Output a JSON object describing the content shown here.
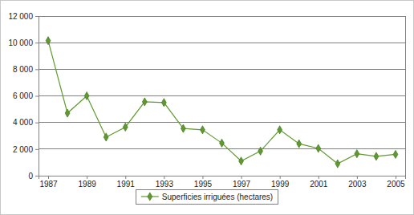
{
  "chart_data": {
    "type": "line",
    "x": [
      1987,
      1988,
      1989,
      1990,
      1991,
      1992,
      1993,
      1994,
      1995,
      1996,
      1997,
      1998,
      1999,
      2000,
      2001,
      2002,
      2003,
      2004,
      2005
    ],
    "series": [
      {
        "name": "Superficies irriguées (hectares)",
        "color": "#5e9a2e",
        "marker": "diamond",
        "line_style": "solid",
        "values": [
          10150,
          4700,
          6000,
          2900,
          3650,
          5550,
          5500,
          3550,
          3450,
          2450,
          1100,
          1850,
          3450,
          2400,
          2050,
          900,
          1650,
          1450,
          1600
        ]
      }
    ],
    "xlim": [
      1986.5,
      2005.5
    ],
    "xticks": [
      1987,
      1989,
      1991,
      1993,
      1995,
      1997,
      1999,
      2001,
      2003,
      2005
    ],
    "ylim": [
      0,
      12000
    ],
    "yticks": [
      0,
      {
        "value": 2000,
        "label": "2 000"
      },
      {
        "value": 4000,
        "label": "4 000"
      },
      {
        "value": 6000,
        "label": "6 000"
      },
      {
        "value": 8000,
        "label": "8 000"
      },
      {
        "value": 10000,
        "label": "10 000"
      },
      {
        "value": 12000,
        "label": "12 000"
      }
    ],
    "grid": true,
    "legend": "bottom"
  }
}
